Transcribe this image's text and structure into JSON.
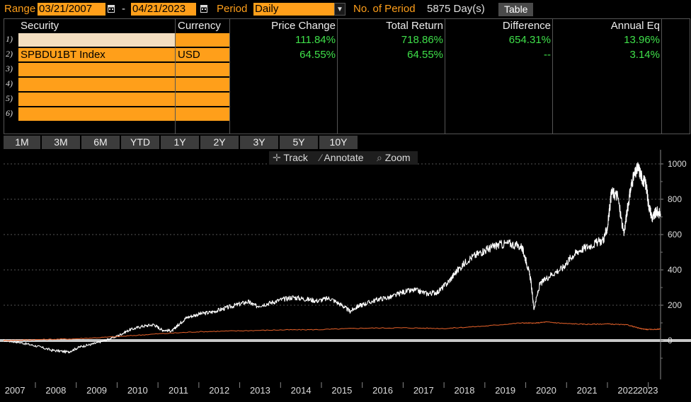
{
  "toolbar": {
    "range_label": "Range",
    "start_date": "03/21/2007",
    "dash": "-",
    "end_date": "04/21/2023",
    "period_label": "Period",
    "period_value": "Daily",
    "num_period_label": "No. of Period",
    "num_period_value": "5875 Day(s)",
    "table_button": "Table"
  },
  "table": {
    "headers": {
      "security": "Security",
      "currency": "Currency",
      "price_change": "Price Change",
      "total_return": "Total Return",
      "difference": "Difference",
      "annual_eq": "Annual Eq"
    },
    "rows": [
      {
        "num": "1)",
        "security": "",
        "currency": "",
        "price_change": "111.84%",
        "total_return": "718.86%",
        "difference": "654.31%",
        "annual_eq": "13.96%"
      },
      {
        "num": "2)",
        "security": "SPBDU1BT Index",
        "currency": "USD",
        "price_change": "64.55%",
        "total_return": "64.55%",
        "difference": "--",
        "annual_eq": "3.14%"
      },
      {
        "num": "3)",
        "security": "",
        "currency": "",
        "price_change": "",
        "total_return": "",
        "difference": "",
        "annual_eq": ""
      },
      {
        "num": "4)",
        "security": "",
        "currency": "",
        "price_change": "",
        "total_return": "",
        "difference": "",
        "annual_eq": ""
      },
      {
        "num": "5)",
        "security": "",
        "currency": "",
        "price_change": "",
        "total_return": "",
        "difference": "",
        "annual_eq": ""
      },
      {
        "num": "6)",
        "security": "",
        "currency": "",
        "price_change": "",
        "total_return": "",
        "difference": "",
        "annual_eq": ""
      }
    ]
  },
  "periods": [
    "1M",
    "3M",
    "6M",
    "YTD",
    "1Y",
    "2Y",
    "3Y",
    "5Y",
    "10Y"
  ],
  "chart_tools": {
    "track": "Track",
    "annotate": "Annotate",
    "zoom": "Zoom"
  },
  "chart_data": {
    "type": "line",
    "title": "",
    "x_ticks": [
      "2007",
      "2008",
      "2009",
      "2010",
      "2011",
      "2012",
      "2013",
      "2014",
      "2015",
      "2016",
      "2017",
      "2018",
      "2019",
      "2020",
      "2021",
      "2022",
      "2023"
    ],
    "y_ticks": [
      "1000",
      "800",
      "600",
      "400",
      "200",
      "0"
    ],
    "ylim": [
      -220,
      1080
    ],
    "xlim": [
      2007.22,
      2023.3
    ],
    "series": [
      {
        "name": "Security 1 (total return, %)",
        "color": "#ffffff",
        "x": [
          2007.22,
          2007.6,
          2008.0,
          2008.4,
          2008.8,
          2009.1,
          2009.4,
          2009.7,
          2010.0,
          2010.3,
          2010.6,
          2010.9,
          2011.1,
          2011.35,
          2011.5,
          2011.7,
          2012.0,
          2012.3,
          2012.6,
          2012.9,
          2013.2,
          2013.4,
          2013.7,
          2014.0,
          2014.3,
          2014.6,
          2014.9,
          2015.2,
          2015.5,
          2015.7,
          2015.9,
          2016.1,
          2016.4,
          2016.7,
          2017.0,
          2017.3,
          2017.6,
          2017.85,
          2018.1,
          2018.3,
          2018.6,
          2018.9,
          2019.1,
          2019.3,
          2019.6,
          2019.9,
          2020.0,
          2020.12,
          2020.2,
          2020.35,
          2020.6,
          2020.9,
          2021.1,
          2021.3,
          2021.6,
          2021.9,
          2022.0,
          2022.1,
          2022.25,
          2022.4,
          2022.5,
          2022.6,
          2022.75,
          2022.85,
          2022.95,
          2023.0,
          2023.1,
          2023.2,
          2023.3
        ],
        "y": [
          0,
          -10,
          -30,
          -55,
          -65,
          -35,
          -20,
          0,
          25,
          60,
          80,
          90,
          60,
          55,
          90,
          130,
          150,
          160,
          180,
          200,
          220,
          195,
          210,
          230,
          245,
          235,
          225,
          240,
          200,
          165,
          195,
          210,
          235,
          245,
          275,
          285,
          265,
          275,
          330,
          390,
          460,
          500,
          520,
          540,
          550,
          530,
          460,
          350,
          180,
          320,
          370,
          410,
          470,
          510,
          540,
          570,
          640,
          840,
          820,
          600,
          760,
          900,
          980,
          920,
          880,
          780,
          690,
          730,
          718
        ]
      },
      {
        "name": "SPBDU1BT Index (USD, %)",
        "color": "#e8622a",
        "x": [
          2007.22,
          2008.0,
          2009.0,
          2010.0,
          2011.0,
          2012.0,
          2013.0,
          2014.0,
          2015.0,
          2016.0,
          2017.0,
          2018.0,
          2019.0,
          2019.9,
          2020.2,
          2020.5,
          2021.0,
          2021.5,
          2022.0,
          2022.5,
          2022.8,
          2023.0,
          2023.3
        ],
        "y": [
          0,
          5,
          10,
          22,
          38,
          50,
          55,
          60,
          62,
          70,
          72,
          68,
          82,
          100,
          98,
          105,
          96,
          92,
          94,
          88,
          68,
          62,
          65
        ]
      }
    ]
  }
}
